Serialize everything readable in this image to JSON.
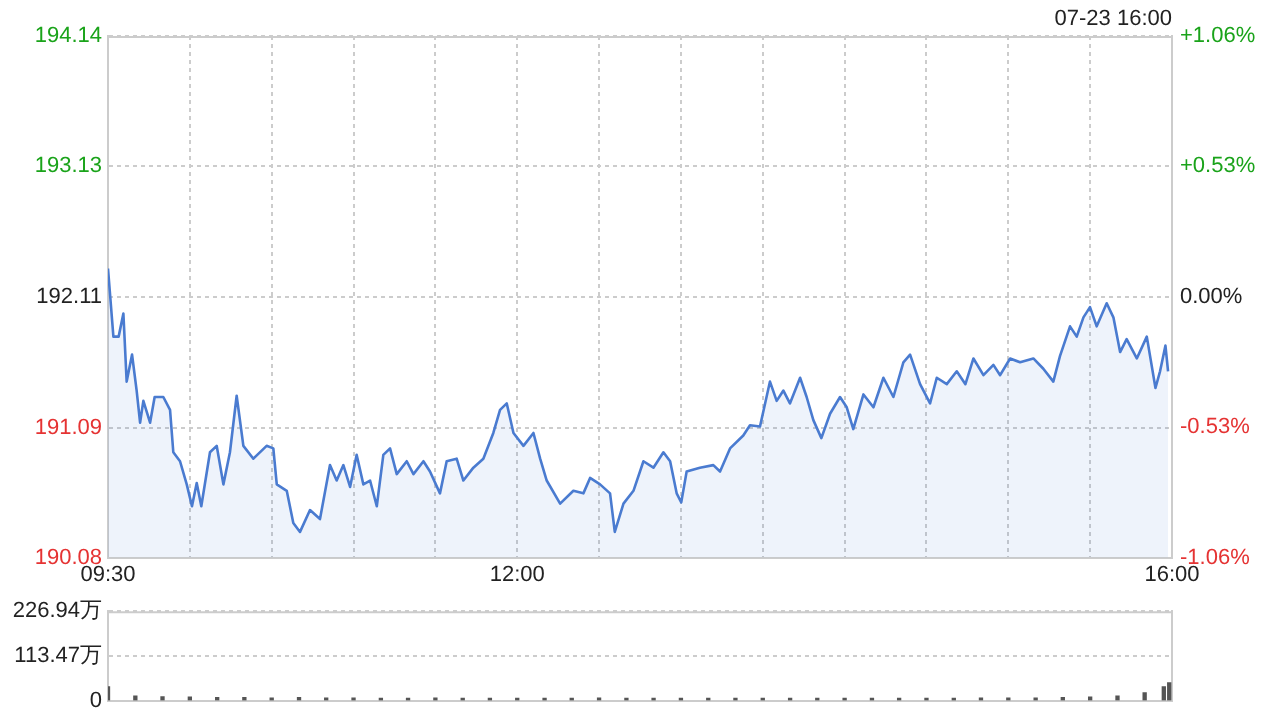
{
  "chart_data": [
    {
      "type": "area",
      "annotations": [
        "07-23 16:00"
      ],
      "x": [
        9.5,
        9.533,
        9.565,
        9.594,
        9.614,
        9.647,
        9.675,
        9.696,
        9.716,
        9.757,
        9.785,
        9.838,
        9.879,
        9.899,
        9.94,
        9.981,
        10.013,
        10.042,
        10.07,
        10.123,
        10.164,
        10.205,
        10.245,
        10.286,
        10.327,
        10.388,
        10.469,
        10.51,
        10.531,
        10.592,
        10.632,
        10.673,
        10.734,
        10.795,
        10.856,
        10.897,
        10.938,
        10.979,
        11.019,
        11.06,
        11.101,
        11.142,
        11.182,
        11.223,
        11.264,
        11.325,
        11.366,
        11.427,
        11.467,
        11.528,
        11.569,
        11.63,
        11.671,
        11.732,
        11.793,
        11.854,
        11.895,
        11.936,
        11.977,
        12.038,
        12.099,
        12.14,
        12.18,
        12.262,
        12.343,
        12.404,
        12.445,
        12.506,
        12.567,
        12.596,
        12.649,
        12.71,
        12.771,
        12.832,
        12.893,
        12.934,
        12.974,
        13.002,
        13.035,
        13.116,
        13.198,
        13.239,
        13.3,
        13.381,
        13.422,
        13.483,
        13.544,
        13.585,
        13.626,
        13.666,
        13.728,
        13.768,
        13.809,
        13.858,
        13.911,
        13.972,
        14.013,
        14.053,
        14.115,
        14.176,
        14.237,
        14.298,
        14.359,
        14.4,
        14.461,
        14.522,
        14.563,
        14.624,
        14.685,
        14.738,
        14.787,
        14.848,
        14.909,
        14.95,
        15.011,
        15.072,
        15.153,
        15.214,
        15.275,
        15.316,
        15.377,
        15.418,
        15.459,
        15.499,
        15.54,
        15.601,
        15.642,
        15.683,
        15.723,
        15.785,
        15.846,
        15.899,
        15.927,
        15.96,
        15.976
      ],
      "series": [
        {
          "color": "#4a7bd0",
          "values": [
            192.33,
            191.8,
            191.8,
            191.98,
            191.45,
            191.66,
            191.38,
            191.13,
            191.3,
            191.13,
            191.33,
            191.33,
            191.23,
            190.9,
            190.83,
            190.65,
            190.48,
            190.66,
            190.48,
            190.9,
            190.95,
            190.65,
            190.9,
            191.34,
            190.95,
            190.85,
            190.95,
            190.93,
            190.65,
            190.6,
            190.35,
            190.28,
            190.45,
            190.38,
            190.8,
            190.68,
            190.8,
            190.63,
            190.88,
            190.65,
            190.68,
            190.48,
            190.88,
            190.93,
            190.73,
            190.83,
            190.73,
            190.83,
            190.75,
            190.58,
            190.83,
            190.85,
            190.68,
            190.78,
            190.85,
            191.05,
            191.23,
            191.28,
            191.05,
            190.95,
            191.05,
            190.85,
            190.68,
            190.5,
            190.6,
            190.58,
            190.7,
            190.65,
            190.58,
            190.28,
            190.5,
            190.6,
            190.83,
            190.78,
            190.9,
            190.83,
            190.58,
            190.51,
            190.75,
            190.78,
            190.8,
            190.75,
            190.93,
            191.03,
            191.11,
            191.1,
            191.45,
            191.3,
            191.38,
            191.28,
            191.48,
            191.33,
            191.15,
            191.01,
            191.2,
            191.33,
            191.25,
            191.08,
            191.35,
            191.25,
            191.48,
            191.33,
            191.6,
            191.66,
            191.43,
            191.28,
            191.48,
            191.43,
            191.53,
            191.43,
            191.63,
            191.5,
            191.58,
            191.5,
            191.63,
            191.6,
            191.63,
            191.55,
            191.45,
            191.65,
            191.88,
            191.8,
            191.95,
            192.03,
            191.88,
            192.06,
            191.95,
            191.68,
            191.78,
            191.63,
            191.8,
            191.4,
            191.53,
            191.73,
            191.53
          ]
        }
      ],
      "xlim": [
        9.5,
        16
      ],
      "xticks": [
        {
          "value": 9.5,
          "label": "09:30"
        },
        {
          "value": 10,
          "label": null
        },
        {
          "value": 10.5,
          "label": null
        },
        {
          "value": 11,
          "label": null
        },
        {
          "value": 11.5,
          "label": null
        },
        {
          "value": 12,
          "label": "12:00"
        },
        {
          "value": 12.5,
          "label": null
        },
        {
          "value": 13,
          "label": null
        },
        {
          "value": 13.5,
          "label": null
        },
        {
          "value": 14,
          "label": null
        },
        {
          "value": 14.5,
          "label": null
        },
        {
          "value": 15,
          "label": null
        },
        {
          "value": 15.5,
          "label": null
        },
        {
          "value": 16,
          "label": "16:00"
        }
      ],
      "ylim": [
        190.08,
        194.14
      ],
      "yticks": [
        190.08,
        191.09,
        192.11,
        193.13,
        194.14
      ],
      "y2lim": [
        -1.06,
        1.06
      ],
      "y2ticks": [
        {
          "value": -1.06,
          "label": "-1.06%"
        },
        {
          "value": -0.53,
          "label": "-0.53%"
        },
        {
          "value": 0,
          "label": "0.00%"
        },
        {
          "value": 0.53,
          "label": "+0.53%"
        },
        {
          "value": 1.06,
          "label": "+1.06%"
        }
      ],
      "grid": true,
      "legend": false
    },
    {
      "type": "bar",
      "tick_labels": "y",
      "x": [
        9.5,
        9.667,
        9.833,
        10,
        10.167,
        10.333,
        10.5,
        10.667,
        10.833,
        11,
        11.167,
        11.333,
        11.5,
        11.667,
        11.833,
        12,
        12.167,
        12.333,
        12.5,
        12.667,
        12.833,
        13,
        13.167,
        13.333,
        13.5,
        13.667,
        13.833,
        14,
        14.167,
        14.333,
        14.5,
        14.667,
        14.833,
        15,
        15.167,
        15.333,
        15.5,
        15.667,
        15.833,
        15.95,
        15.983
      ],
      "series": [
        {
          "color": "#555555",
          "values": [
            35,
            12,
            10,
            9,
            8,
            8,
            7,
            8,
            7,
            7,
            6,
            6,
            7,
            6,
            6,
            6,
            6,
            6,
            7,
            6,
            6,
            6,
            6,
            6,
            6,
            6,
            6,
            6,
            6,
            6,
            6,
            6,
            7,
            7,
            7,
            8,
            9,
            12,
            20,
            35,
            45
          ]
        }
      ],
      "xlim": [
        9.5,
        16
      ],
      "ylim": [
        0,
        226.94
      ],
      "yticks": [
        0,
        {
          "value": 113.47,
          "label": "113.47万"
        },
        {
          "value": 226.94,
          "label": "226.94万"
        }
      ],
      "grid": true,
      "legend": false
    }
  ]
}
